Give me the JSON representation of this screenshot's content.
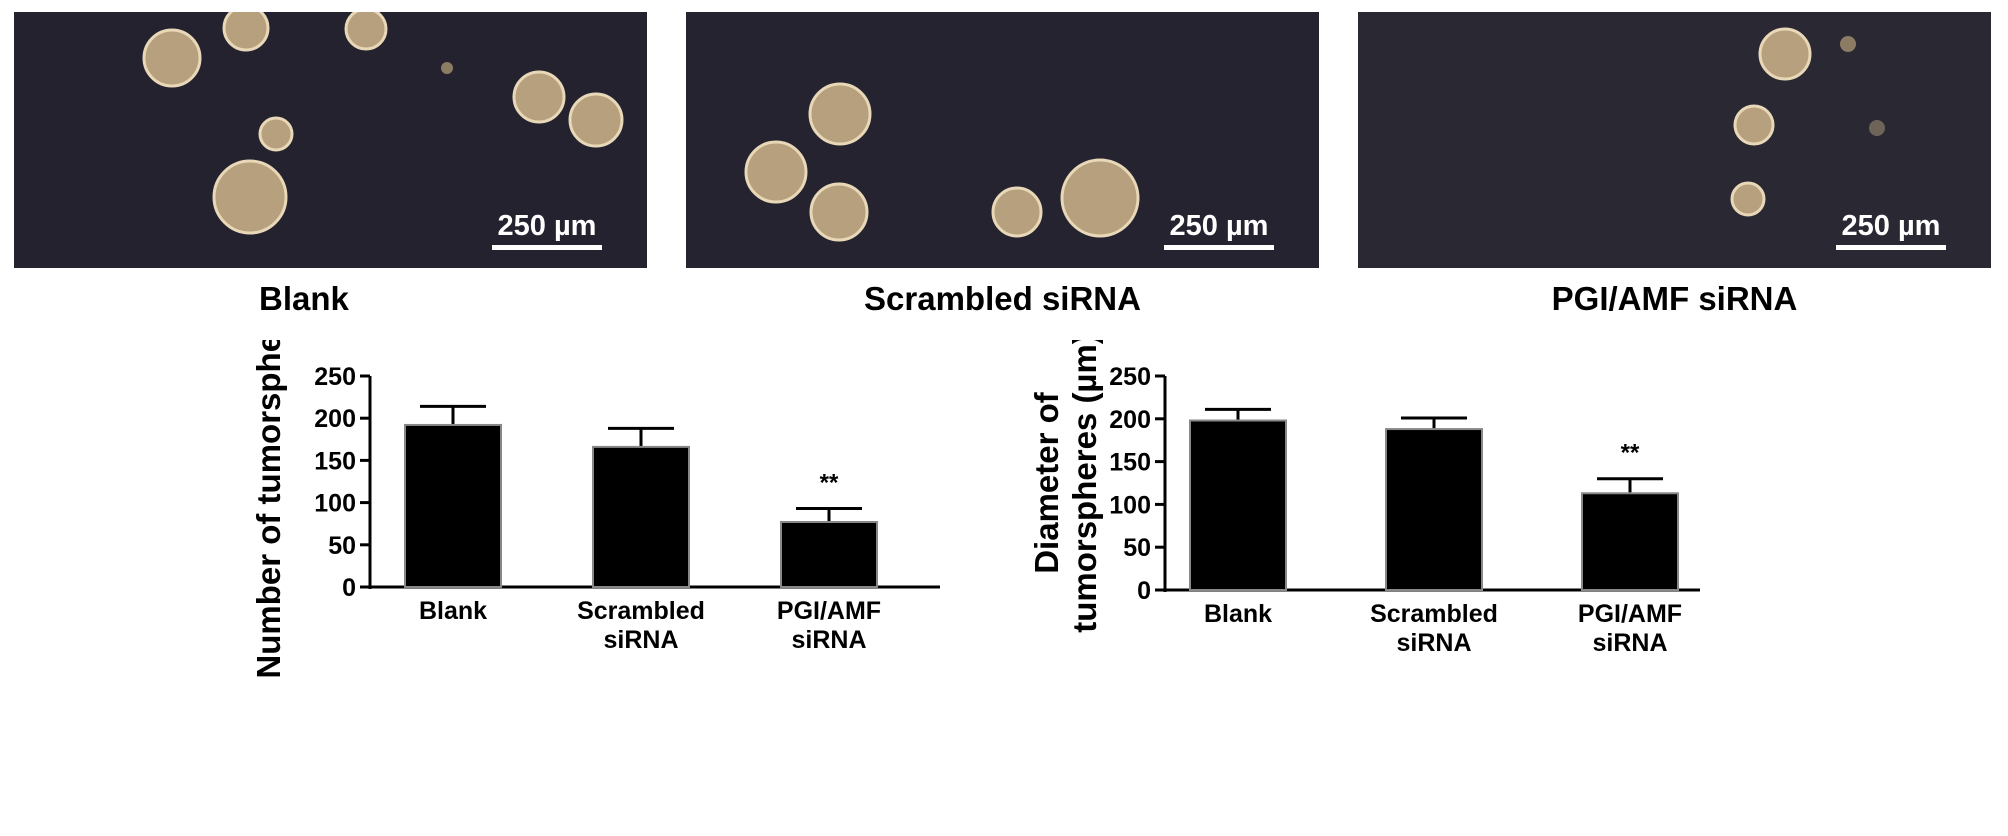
{
  "micrographs": [
    {
      "label": "Blank",
      "scale_bar": "250 µm"
    },
    {
      "label": "Scrambled siRNA",
      "scale_bar": "250 µm"
    },
    {
      "label": "PGI/AMF siRNA",
      "scale_bar": "250 µm"
    }
  ],
  "chart_data": [
    {
      "type": "bar",
      "categories": [
        [
          "Blank"
        ],
        [
          "Scrambled",
          "siRNA"
        ],
        [
          "PGI/AMF",
          "siRNA"
        ]
      ],
      "values": [
        192,
        166,
        77
      ],
      "error": [
        22,
        22,
        16
      ],
      "annotations": [
        "",
        "",
        "**"
      ],
      "ylabel": [
        "Number of  tumorspheres"
      ],
      "xlabel": "",
      "ylim": [
        0,
        250
      ],
      "yticks": [
        0,
        50,
        100,
        150,
        200,
        250
      ],
      "grid": false,
      "bar_color": "#000000"
    },
    {
      "type": "bar",
      "categories": [
        [
          "Blank"
        ],
        [
          "Scrambled",
          "siRNA"
        ],
        [
          "PGI/AMF",
          "siRNA"
        ]
      ],
      "values": [
        198,
        188,
        113
      ],
      "error": [
        13,
        13,
        17
      ],
      "annotations": [
        "",
        "",
        "**"
      ],
      "ylabel": [
        "Diameter of",
        "tumorspheres (µm)"
      ],
      "xlabel": "",
      "ylim": [
        0,
        250
      ],
      "yticks": [
        0,
        50,
        100,
        150,
        200,
        250
      ],
      "grid": false,
      "bar_color": "#000000"
    }
  ]
}
